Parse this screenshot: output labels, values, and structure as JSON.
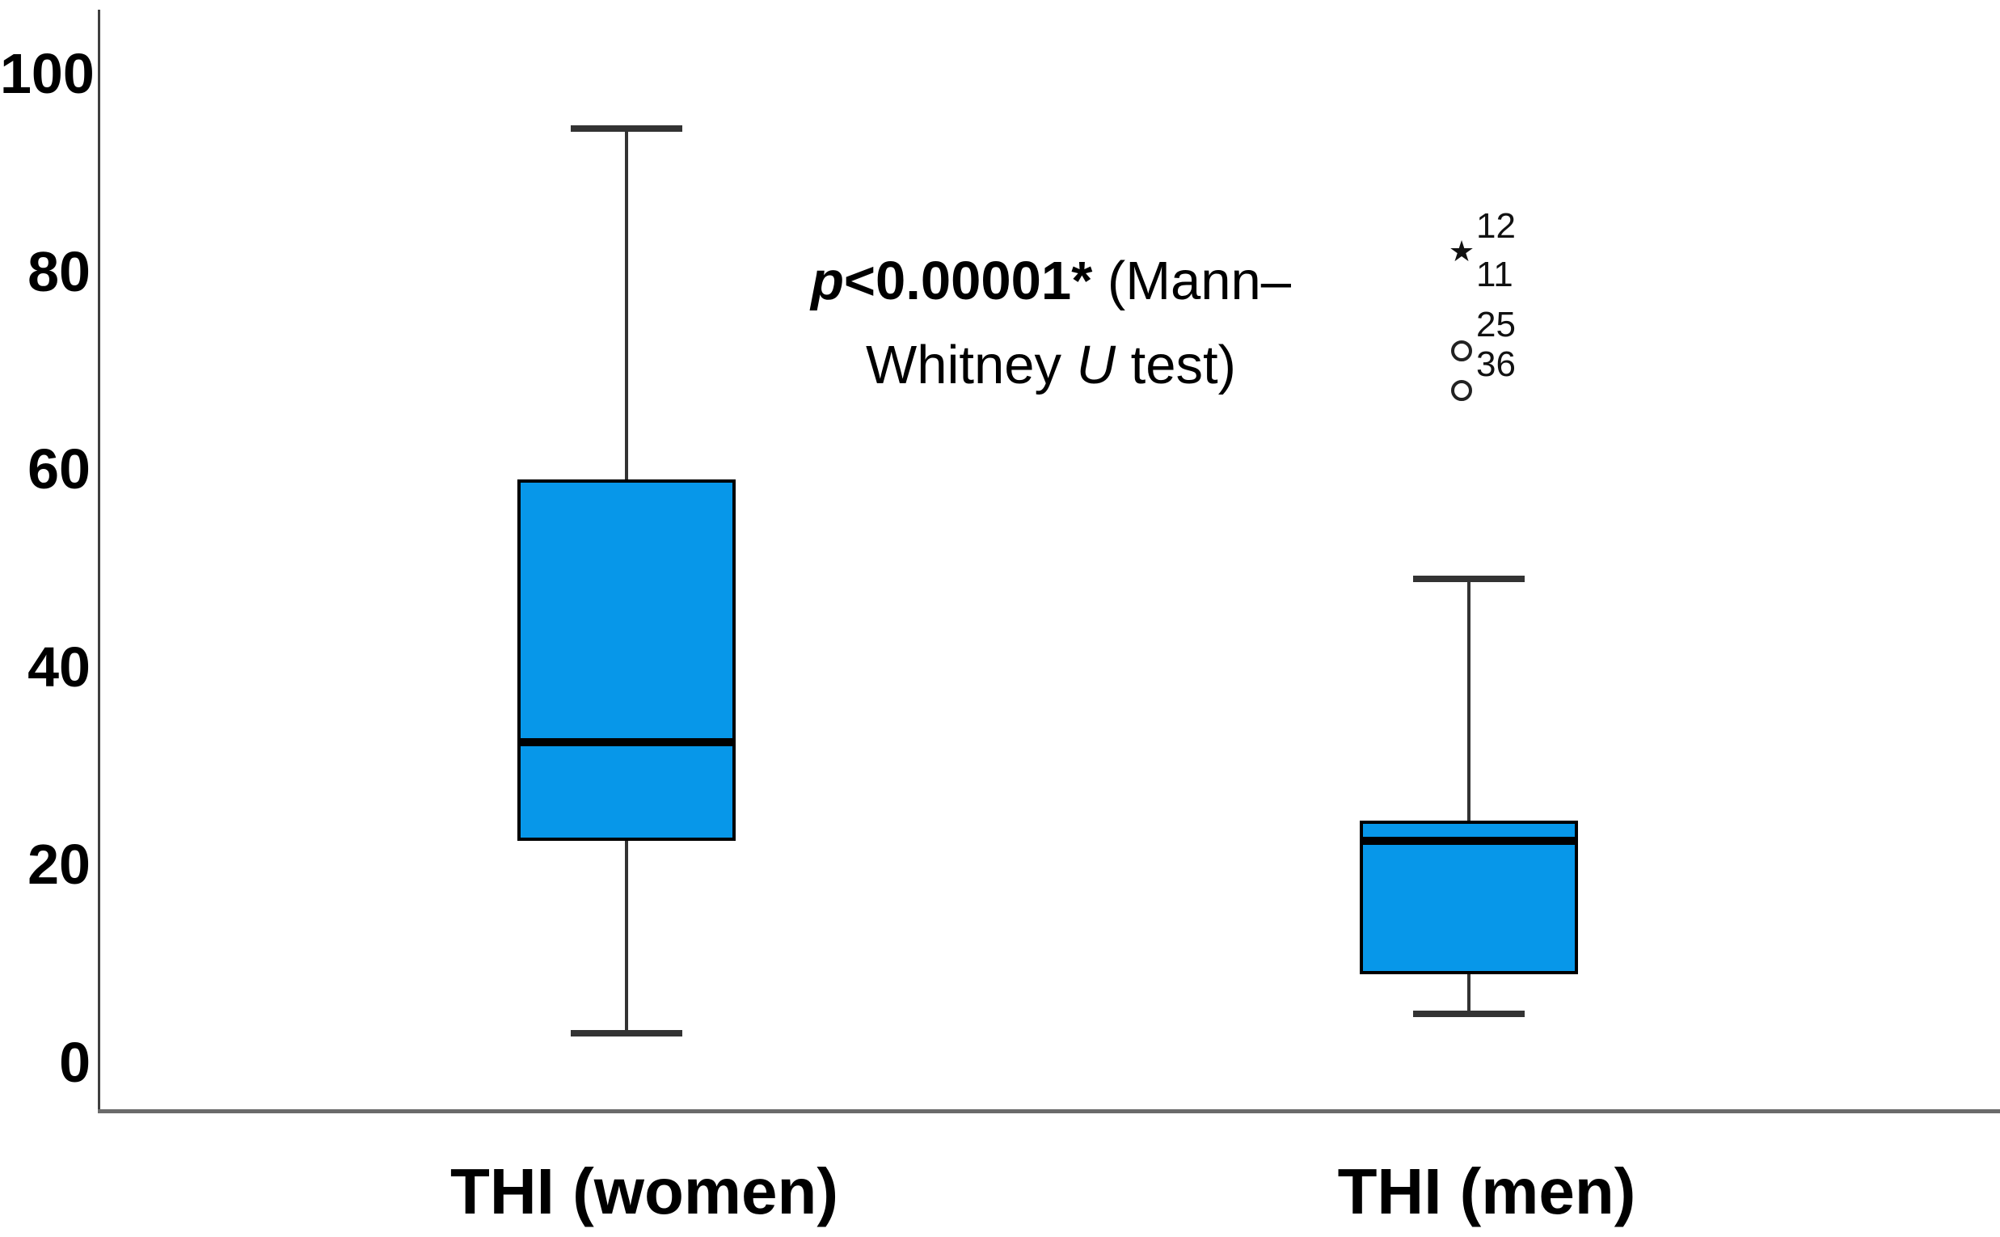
{
  "figure": {
    "background": "#ffffff"
  },
  "annotation": {
    "p_symbol": "p",
    "bold_text": "<0.00001*",
    "line1_rest": " (Mann–",
    "line2_pre": "Whitney ",
    "u_symbol": "U",
    "line2_post": " test)"
  },
  "chart_data": {
    "type": "boxplot",
    "title": "",
    "xlabel": "",
    "ylabel": "",
    "ylim": [
      0,
      100
    ],
    "yticks": [
      0,
      20,
      40,
      60,
      80,
      100
    ],
    "grid": false,
    "legend_position": "none",
    "box_fill_color": "#0797E9",
    "box_border_color": "#000000",
    "whisker_color": "#333333",
    "categories": [
      "THI (women)",
      "THI (men)"
    ],
    "series": [
      {
        "name": "THI (women)",
        "whisker_low": 3,
        "q1": 22.5,
        "median": 32.5,
        "q3": 59,
        "whisker_high": 94.5,
        "outliers": []
      },
      {
        "name": "THI (men)",
        "whisker_low": 5,
        "q1": 9,
        "median": 22.5,
        "q3": 24.5,
        "whisker_high": 49,
        "outliers": [
          {
            "symbol": "star",
            "value": 82,
            "cases": [
              "12",
              "11"
            ]
          },
          {
            "symbol": "circle",
            "value": 72,
            "cases": [
              "25"
            ]
          },
          {
            "symbol": "circle",
            "value": 68,
            "cases": [
              "36"
            ]
          }
        ]
      }
    ],
    "annotation_text": "p<0.00001* (Mann–Whitney U test)"
  }
}
